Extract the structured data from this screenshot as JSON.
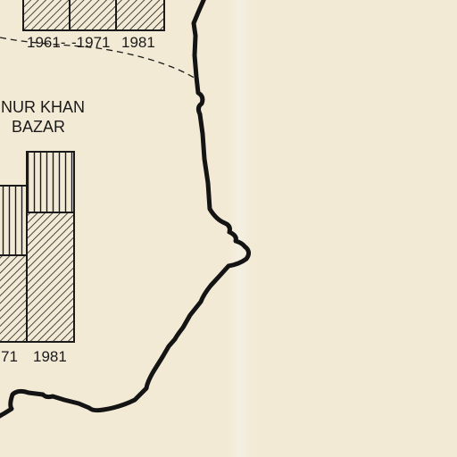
{
  "place_label": {
    "line1": "NUR KHAN",
    "line2": "BAZAR"
  },
  "top_chart": {
    "year_labels": [
      "1961-",
      "-1971",
      "1981"
    ]
  },
  "bottom_chart": {
    "year_labels": [
      "71",
      "1981"
    ]
  },
  "colors": {
    "paper": "#f3ead6",
    "ink": "#1a1a1a"
  }
}
